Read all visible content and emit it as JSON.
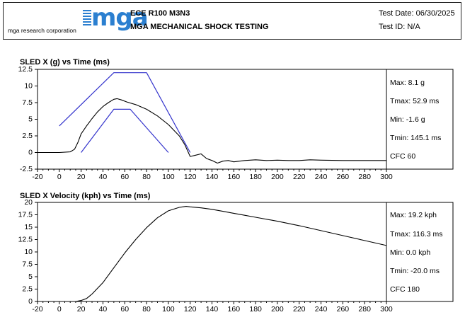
{
  "header": {
    "logo_word": "mga",
    "logo_subtitle": "mga research corporation",
    "test_code": "ECE R100 M3N3",
    "test_name": "MGA MECHANICAL SHOCK TESTING",
    "test_date": "Test Date: 06/30/2025",
    "test_id": "Test ID: N/A"
  },
  "colors": {
    "trace": "#000000",
    "corridor": "#3333cc",
    "logo": "#2b7fd0"
  },
  "chart_data": [
    {
      "type": "line",
      "title": "SLED X (g) vs Time (ms)",
      "xlim": [
        -20,
        300
      ],
      "ylim": [
        -2.5,
        12.5
      ],
      "xticks": [
        "-20",
        "0",
        "20",
        "40",
        "60",
        "80",
        "100",
        "120",
        "140",
        "160",
        "180",
        "200",
        "220",
        "240",
        "260",
        "280",
        "300"
      ],
      "yticks": [
        "-2.5",
        "0",
        "2.5",
        "5",
        "7.5",
        "10",
        "12.5"
      ],
      "grid": false,
      "stats": [
        "Max: 8.1 g",
        "Tmax: 52.9 ms",
        "Min: -1.6 g",
        "Tmin: 145.1 ms",
        "CFC 60"
      ],
      "series": [
        {
          "role": "trace",
          "x": [
            -20,
            0,
            10,
            14,
            17,
            20,
            25,
            30,
            35,
            40,
            45,
            50,
            52.9,
            57,
            62,
            70,
            80,
            90,
            100,
            110,
            115,
            120,
            125,
            130,
            135,
            140,
            145,
            150,
            155,
            160,
            170,
            180,
            190,
            200,
            210,
            220,
            230,
            240,
            260,
            280,
            300
          ],
          "y": [
            0,
            0,
            0.1,
            0.5,
            1.5,
            2.8,
            4.0,
            5.1,
            6.1,
            6.9,
            7.5,
            8.0,
            8.1,
            7.9,
            7.6,
            7.2,
            6.5,
            5.5,
            4.2,
            2.5,
            1.2,
            -0.6,
            -0.4,
            -0.2,
            -0.9,
            -1.2,
            -1.6,
            -1.3,
            -1.2,
            -1.4,
            -1.2,
            -1.1,
            -1.2,
            -1.15,
            -1.2,
            -1.2,
            -1.1,
            -1.15,
            -1.2,
            -1.2,
            -1.2
          ]
        },
        {
          "role": "corridor-upper",
          "x": [
            0,
            50,
            80,
            120
          ],
          "y": [
            4,
            12,
            12,
            0
          ]
        },
        {
          "role": "corridor-lower",
          "x": [
            20,
            50,
            65,
            100
          ],
          "y": [
            0,
            6.5,
            6.5,
            0
          ]
        }
      ]
    },
    {
      "type": "line",
      "title": "SLED X Velocity (kph) vs Time (ms)",
      "xlim": [
        -20,
        300
      ],
      "ylim": [
        0,
        20
      ],
      "xticks": [
        "-20",
        "0",
        "20",
        "40",
        "60",
        "80",
        "100",
        "120",
        "140",
        "160",
        "180",
        "200",
        "220",
        "240",
        "260",
        "280",
        "300"
      ],
      "yticks": [
        "0",
        "2.5",
        "5",
        "7.5",
        "10",
        "12.5",
        "15",
        "17.5",
        "20"
      ],
      "grid": false,
      "stats": [
        "Max: 19.2 kph",
        "Tmax: 116.3 ms",
        "Min: 0.0 kph",
        "Tmin: -20.0 ms",
        "CFC 180"
      ],
      "series": [
        {
          "role": "trace",
          "x": [
            -20,
            0,
            15,
            20,
            25,
            30,
            40,
            50,
            60,
            70,
            80,
            90,
            100,
            110,
            116.3,
            120,
            130,
            140,
            150,
            160,
            170,
            180,
            200,
            220,
            240,
            260,
            280,
            300
          ],
          "y": [
            0,
            0,
            0,
            0.2,
            0.6,
            1.5,
            3.8,
            6.8,
            9.8,
            12.5,
            14.9,
            16.9,
            18.3,
            19.0,
            19.2,
            19.1,
            18.9,
            18.6,
            18.2,
            17.8,
            17.4,
            17.0,
            16.2,
            15.3,
            14.3,
            13.3,
            12.3,
            11.3
          ]
        }
      ]
    }
  ]
}
